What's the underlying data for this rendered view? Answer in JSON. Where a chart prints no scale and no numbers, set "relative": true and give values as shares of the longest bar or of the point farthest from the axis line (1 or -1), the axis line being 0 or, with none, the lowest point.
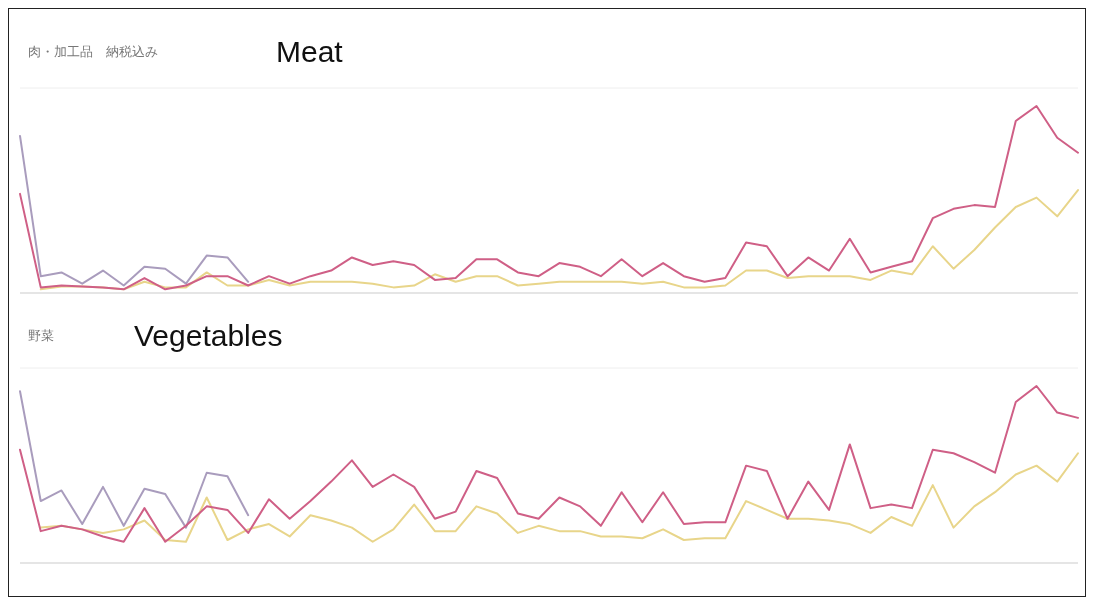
{
  "chart_data": [
    {
      "type": "line",
      "title": "肉・加工品　納税込み",
      "subtitle": "Meat",
      "relative": true,
      "categories": [
        null,
        null,
        null,
        null,
        null,
        null,
        null,
        null,
        null,
        null,
        null,
        null,
        null,
        null,
        null,
        null,
        null,
        null,
        null,
        null,
        null,
        null,
        null,
        null,
        null,
        null,
        null,
        null,
        null,
        null,
        null,
        null,
        null,
        null,
        null,
        null,
        null,
        null,
        null,
        null,
        null,
        null,
        null,
        null,
        null,
        null,
        null,
        null,
        null,
        null,
        null,
        null
      ],
      "series": [
        {
          "color": "#e8d58a",
          "values": [
            null,
            0.02,
            0.035,
            0.035,
            0.03,
            0.02,
            0.06,
            0.03,
            0.03,
            0.11,
            0.04,
            0.04,
            0.07,
            0.04,
            0.06,
            0.06,
            0.06,
            0.05,
            0.03,
            0.04,
            0.1,
            0.06,
            0.09,
            0.09,
            0.04,
            0.05,
            0.06,
            0.06,
            0.06,
            0.06,
            0.05,
            0.06,
            0.03,
            0.03,
            0.04,
            0.12,
            0.12,
            0.08,
            0.09,
            0.09,
            0.09,
            0.07,
            0.12,
            0.1,
            0.25,
            0.13,
            0.23,
            0.35,
            0.46,
            0.51,
            0.41,
            0.55
          ]
        },
        {
          "color": "#a99cbd",
          "values": [
            0.84,
            0.09,
            0.11,
            0.05,
            0.12,
            0.04,
            0.14,
            0.13,
            0.05,
            0.2,
            0.19,
            0.06,
            null,
            null,
            null,
            null,
            null,
            null,
            null,
            null,
            null,
            null,
            null,
            null,
            null,
            null,
            null,
            null,
            null,
            null,
            null,
            null,
            null,
            null,
            null,
            null,
            null,
            null,
            null,
            null,
            null,
            null,
            null,
            null,
            null,
            null,
            null,
            null,
            null,
            null,
            null,
            null
          ]
        },
        {
          "color": "#cf5f86",
          "values": [
            0.53,
            0.03,
            0.04,
            0.035,
            0.03,
            0.02,
            0.08,
            0.02,
            0.04,
            0.09,
            0.09,
            0.04,
            0.09,
            0.05,
            0.09,
            0.12,
            0.19,
            0.15,
            0.17,
            0.15,
            0.07,
            0.08,
            0.18,
            0.18,
            0.11,
            0.09,
            0.16,
            0.14,
            0.09,
            0.18,
            0.09,
            0.16,
            0.09,
            0.06,
            0.08,
            0.27,
            0.25,
            0.09,
            0.19,
            0.12,
            0.29,
            0.11,
            0.14,
            0.17,
            0.4,
            0.45,
            0.47,
            0.46,
            0.92,
            1.0,
            0.83,
            0.75
          ]
        }
      ]
    },
    {
      "type": "line",
      "title": "野菜",
      "subtitle": "Vegetables",
      "relative": true,
      "categories": [
        null,
        null,
        null,
        null,
        null,
        null,
        null,
        null,
        null,
        null,
        null,
        null,
        null,
        null,
        null,
        null,
        null,
        null,
        null,
        null,
        null,
        null,
        null,
        null,
        null,
        null,
        null,
        null,
        null,
        null,
        null,
        null,
        null,
        null,
        null,
        null,
        null,
        null,
        null,
        null,
        null,
        null,
        null,
        null,
        null,
        null,
        null,
        null,
        null,
        null,
        null,
        null
      ],
      "series": [
        {
          "color": "#e8d58a",
          "values": [
            null,
            0.2,
            0.21,
            0.19,
            0.17,
            0.19,
            0.24,
            0.13,
            0.12,
            0.37,
            0.13,
            0.19,
            0.22,
            0.15,
            0.27,
            0.24,
            0.2,
            0.12,
            0.19,
            0.33,
            0.18,
            0.18,
            0.32,
            0.28,
            0.17,
            0.21,
            0.18,
            0.18,
            0.15,
            0.15,
            0.14,
            0.19,
            0.13,
            0.14,
            0.14,
            0.35,
            0.3,
            0.25,
            0.25,
            0.24,
            0.22,
            0.17,
            0.26,
            0.21,
            0.44,
            0.2,
            0.32,
            0.4,
            0.5,
            0.55,
            0.46,
            0.62
          ]
        },
        {
          "color": "#a99cbd",
          "values": [
            0.97,
            0.35,
            0.41,
            0.22,
            0.43,
            0.21,
            0.42,
            0.39,
            0.2,
            0.51,
            0.49,
            0.27,
            null,
            null,
            null,
            null,
            null,
            null,
            null,
            null,
            null,
            null,
            null,
            null,
            null,
            null,
            null,
            null,
            null,
            null,
            null,
            null,
            null,
            null,
            null,
            null,
            null,
            null,
            null,
            null,
            null,
            null,
            null,
            null,
            null,
            null,
            null,
            null,
            null,
            null,
            null,
            null
          ]
        },
        {
          "color": "#cf5f86",
          "values": [
            0.64,
            0.18,
            0.21,
            0.19,
            0.15,
            0.12,
            0.31,
            0.12,
            0.21,
            0.32,
            0.3,
            0.17,
            0.36,
            0.25,
            0.35,
            0.46,
            0.58,
            0.43,
            0.5,
            0.43,
            0.25,
            0.29,
            0.52,
            0.48,
            0.28,
            0.25,
            0.37,
            0.32,
            0.21,
            0.4,
            0.23,
            0.4,
            0.22,
            0.23,
            0.23,
            0.55,
            0.52,
            0.25,
            0.46,
            0.3,
            0.67,
            0.31,
            0.33,
            0.31,
            0.64,
            0.62,
            0.57,
            0.51,
            0.91,
            1.0,
            0.85,
            0.82
          ]
        }
      ]
    }
  ]
}
